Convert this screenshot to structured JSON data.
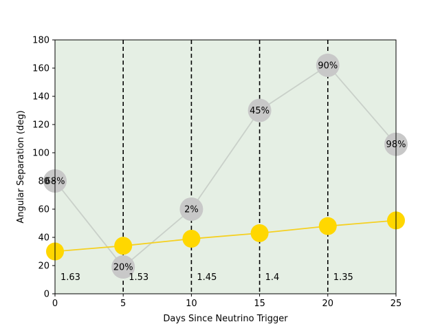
{
  "chart_data": {
    "type": "line",
    "title": "",
    "xlabel": "Days Since Neutrino Trigger",
    "ylabel": "Angular Separation (deg)",
    "xlim": [
      0,
      25
    ],
    "ylim": [
      0,
      180
    ],
    "x_ticks": [
      0,
      5,
      10,
      15,
      20,
      25
    ],
    "y_ticks": [
      0,
      20,
      40,
      60,
      80,
      100,
      120,
      140,
      160,
      180
    ],
    "vertical_dashed_lines_x": [
      5,
      10,
      15,
      20
    ],
    "background_color": "#e5efe4",
    "grid": false,
    "series": [
      {
        "x": [
          0,
          5,
          10,
          15,
          20,
          25
        ],
        "values": [
          80,
          19,
          60,
          130,
          162,
          106
        ],
        "point_labels": [
          "68%",
          "20%",
          "2%",
          "45%",
          "90%",
          "98%"
        ],
        "color": "#c8c8c8",
        "line_color": "#c9d0c9"
      },
      {
        "x": [
          0,
          5,
          10,
          15,
          20,
          25
        ],
        "values": [
          30,
          34,
          39,
          43,
          48,
          52
        ],
        "color": "#ffd700",
        "line_color": "#f5d020"
      }
    ],
    "annotations": [
      {
        "x": 0,
        "text": "1.63"
      },
      {
        "x": 5,
        "text": "1.53"
      },
      {
        "x": 10,
        "text": "1.45"
      },
      {
        "x": 15,
        "text": "1.4"
      },
      {
        "x": 20,
        "text": "1.35"
      }
    ]
  }
}
